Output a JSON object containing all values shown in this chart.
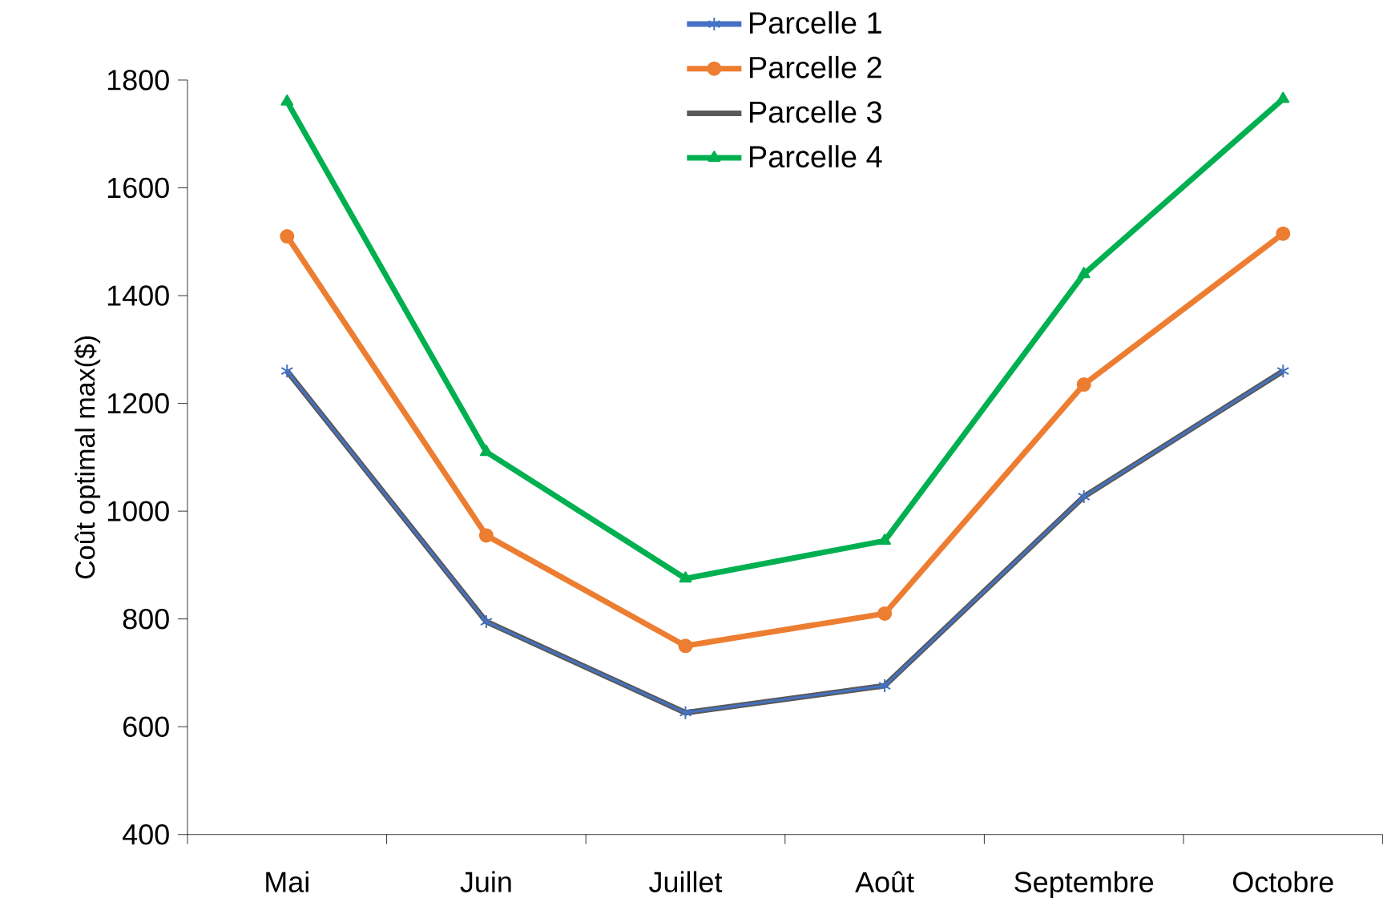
{
  "chart_data": {
    "type": "line",
    "ylabel": "Coût optimal max($)",
    "categories": [
      "Mai",
      "Juin",
      "Juillet",
      "Août",
      "Septembre",
      "Octobre"
    ],
    "series": [
      {
        "name": "Parcelle 1",
        "color": "#4472c4",
        "marker": "cross",
        "values": [
          1260,
          795,
          626,
          676,
          1027,
          1260
        ]
      },
      {
        "name": "Parcelle 2",
        "color": "#ed7d31",
        "marker": "circle",
        "values": [
          1510,
          955,
          750,
          810,
          1235,
          1515
        ]
      },
      {
        "name": "Parcelle 3",
        "color": "#595959",
        "marker": "none",
        "values": [
          1260,
          795,
          626,
          676,
          1027,
          1260
        ]
      },
      {
        "name": "Parcelle 4",
        "color": "#00b050",
        "marker": "triangle",
        "values": [
          1760,
          1110,
          875,
          945,
          1440,
          1765
        ]
      }
    ],
    "ylim": [
      400,
      1800
    ],
    "yticks": [
      400,
      600,
      800,
      1000,
      1200,
      1400,
      1600,
      1800
    ],
    "grid": false,
    "legend": "top"
  }
}
